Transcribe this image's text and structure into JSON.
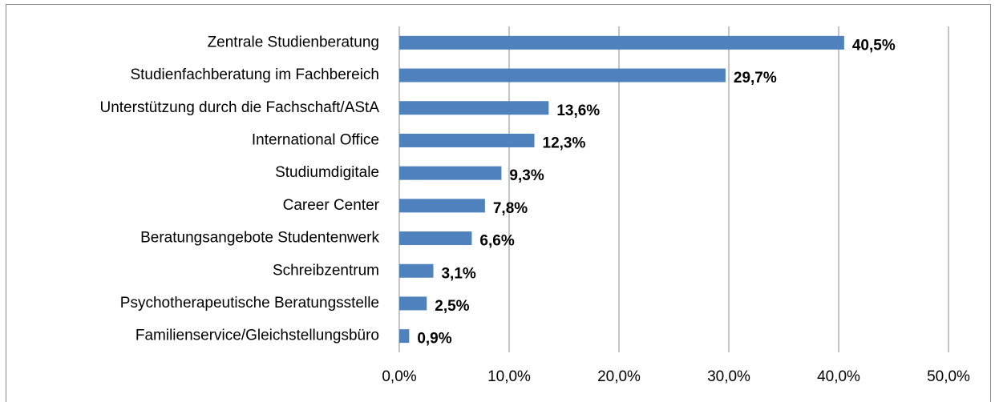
{
  "chart_data": {
    "type": "bar",
    "orientation": "horizontal",
    "categories": [
      "Zentrale Studienberatung",
      "Studienfachberatung im Fachbereich",
      "Unterstützung durch die Fachschaft/AStA",
      "International Office",
      "Studiumdigitale",
      "Career Center",
      "Beratungsangebote Studentenwerk",
      "Schreibzentrum",
      "Psychotherapeutische Beratungsstelle",
      "Familienservice/Gleichstellungsbüro"
    ],
    "values": [
      40.5,
      29.7,
      13.6,
      12.3,
      9.3,
      7.8,
      6.6,
      3.1,
      2.5,
      0.9
    ],
    "value_labels": [
      "40,5%",
      "29,7%",
      "13,6%",
      "12,3%",
      "9,3%",
      "7,8%",
      "6,6%",
      "3,1%",
      "2,5%",
      "0,9%"
    ],
    "color": "#4f81bd",
    "xlim": [
      0,
      50
    ],
    "xticks": [
      {
        "value": 0,
        "label": "0,0%"
      },
      {
        "value": 10,
        "label": "10,0%"
      },
      {
        "value": 20,
        "label": "20,0%"
      },
      {
        "value": 30,
        "label": "30,0%"
      },
      {
        "value": 40,
        "label": "40,0%"
      },
      {
        "value": 50,
        "label": "50,0%"
      }
    ],
    "grid": true
  }
}
